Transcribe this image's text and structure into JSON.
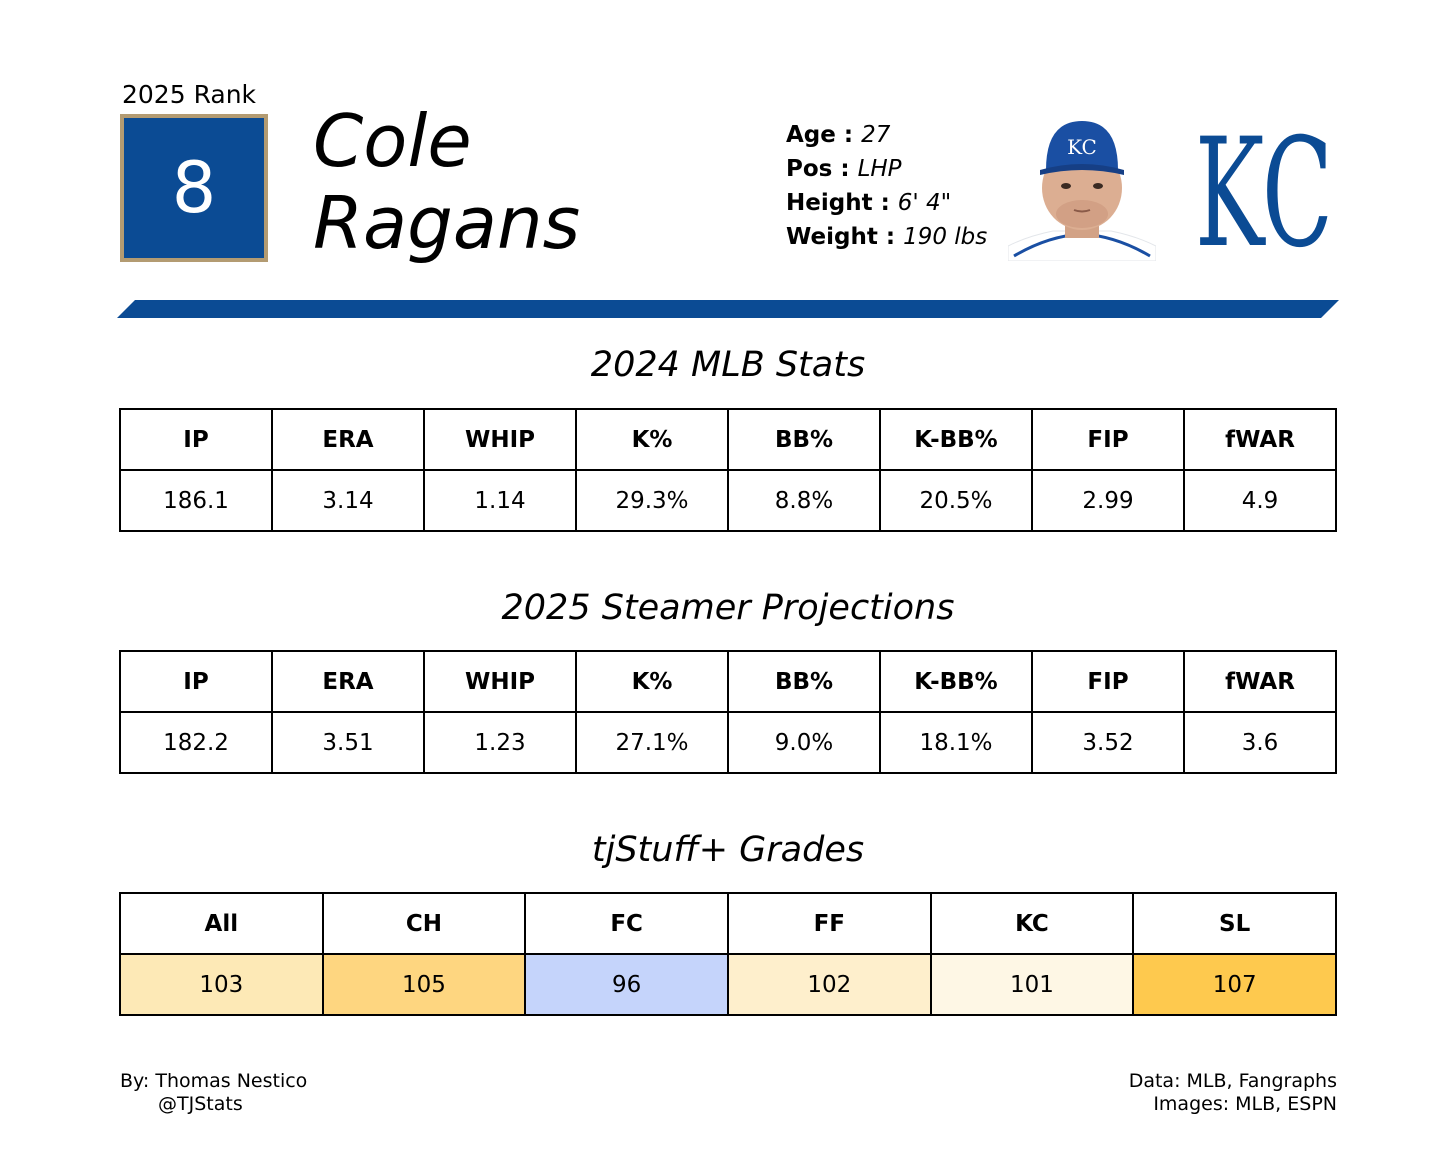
{
  "rank": {
    "label": "2025 Rank",
    "value": "8"
  },
  "player": {
    "first_name": "Cole",
    "last_name": "Ragans"
  },
  "bio": [
    {
      "key": "Age :",
      "value": "27"
    },
    {
      "key": "Pos :",
      "value": "LHP"
    },
    {
      "key": "Height :",
      "value": "6' 4\""
    },
    {
      "key": "Weight :",
      "value": "190 lbs"
    }
  ],
  "team_logo": {
    "text": "KC",
    "color": "#0b4b94"
  },
  "headshot": {
    "cap_logo": "KC"
  },
  "colors": {
    "primary": "#0b4b94",
    "gold": "#b39b72"
  },
  "mlb_stats": {
    "title": "2024 MLB Stats",
    "headers": [
      "IP",
      "ERA",
      "WHIP",
      "K%",
      "BB%",
      "K-BB%",
      "FIP",
      "fWAR"
    ],
    "values": [
      "186.1",
      "3.14",
      "1.14",
      "29.3%",
      "8.8%",
      "20.5%",
      "2.99",
      "4.9"
    ]
  },
  "steamer": {
    "title": "2025 Steamer Projections",
    "headers": [
      "IP",
      "ERA",
      "WHIP",
      "K%",
      "BB%",
      "K-BB%",
      "FIP",
      "fWAR"
    ],
    "values": [
      "182.2",
      "3.51",
      "1.23",
      "27.1%",
      "9.0%",
      "18.1%",
      "3.52",
      "3.6"
    ]
  },
  "stuff": {
    "title": "tjStuff+ Grades",
    "headers": [
      "All",
      "CH",
      "FC",
      "FF",
      "KC",
      "SL"
    ],
    "values": [
      "103",
      "105",
      "96",
      "102",
      "101",
      "107"
    ],
    "cell_colors": [
      "#fde9b6",
      "#fed680",
      "#c5d4fb",
      "#feefcc",
      "#fef7e5",
      "#fec94e"
    ]
  },
  "footer": {
    "author": "By: Thomas Nestico",
    "handle": "@TJStats",
    "data_source": "Data: MLB, Fangraphs",
    "image_source": "Images: MLB, ESPN"
  }
}
